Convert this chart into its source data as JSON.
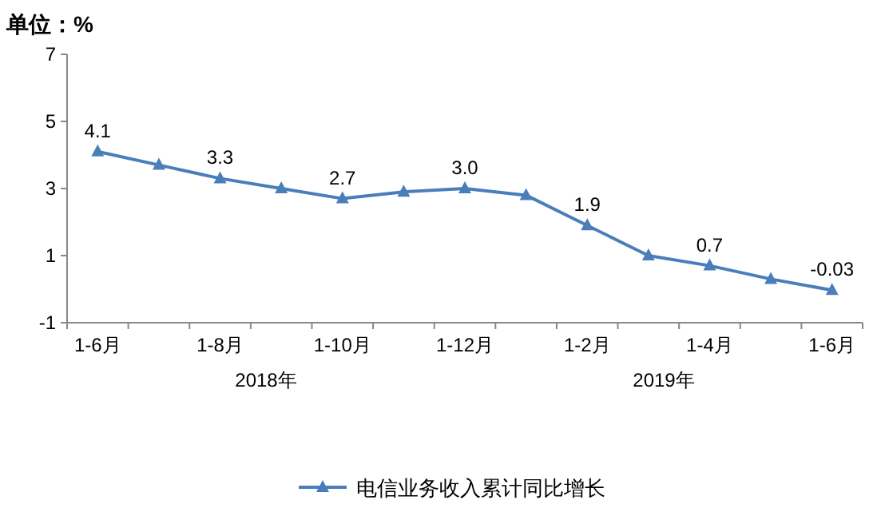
{
  "chart_data": {
    "type": "line",
    "ylabel": "单位：%",
    "categories": [
      "1-6月",
      null,
      "1-8月",
      null,
      "1-10月",
      null,
      "1-12月",
      null,
      "1-2月",
      null,
      "1-4月",
      null,
      "1-6月"
    ],
    "series": [
      {
        "name": "电信业务收入累计同比增长",
        "color": "#4a7ebb",
        "values": [
          4.1,
          3.7,
          3.3,
          3.0,
          2.7,
          2.9,
          3.0,
          2.8,
          1.9,
          1.0,
          0.7,
          0.3,
          -0.03
        ],
        "value_labels": [
          "4.1",
          null,
          "3.3",
          null,
          "2.7",
          null,
          "3.0",
          null,
          "1.9",
          null,
          "0.7",
          null,
          "-0.03"
        ]
      }
    ],
    "ylim": [
      -1,
      7
    ],
    "yticks": [
      -1,
      1,
      3,
      5,
      7
    ],
    "marker": "triangle",
    "legend": "bottom",
    "annotations": [
      "2018年",
      "2019年"
    ]
  }
}
